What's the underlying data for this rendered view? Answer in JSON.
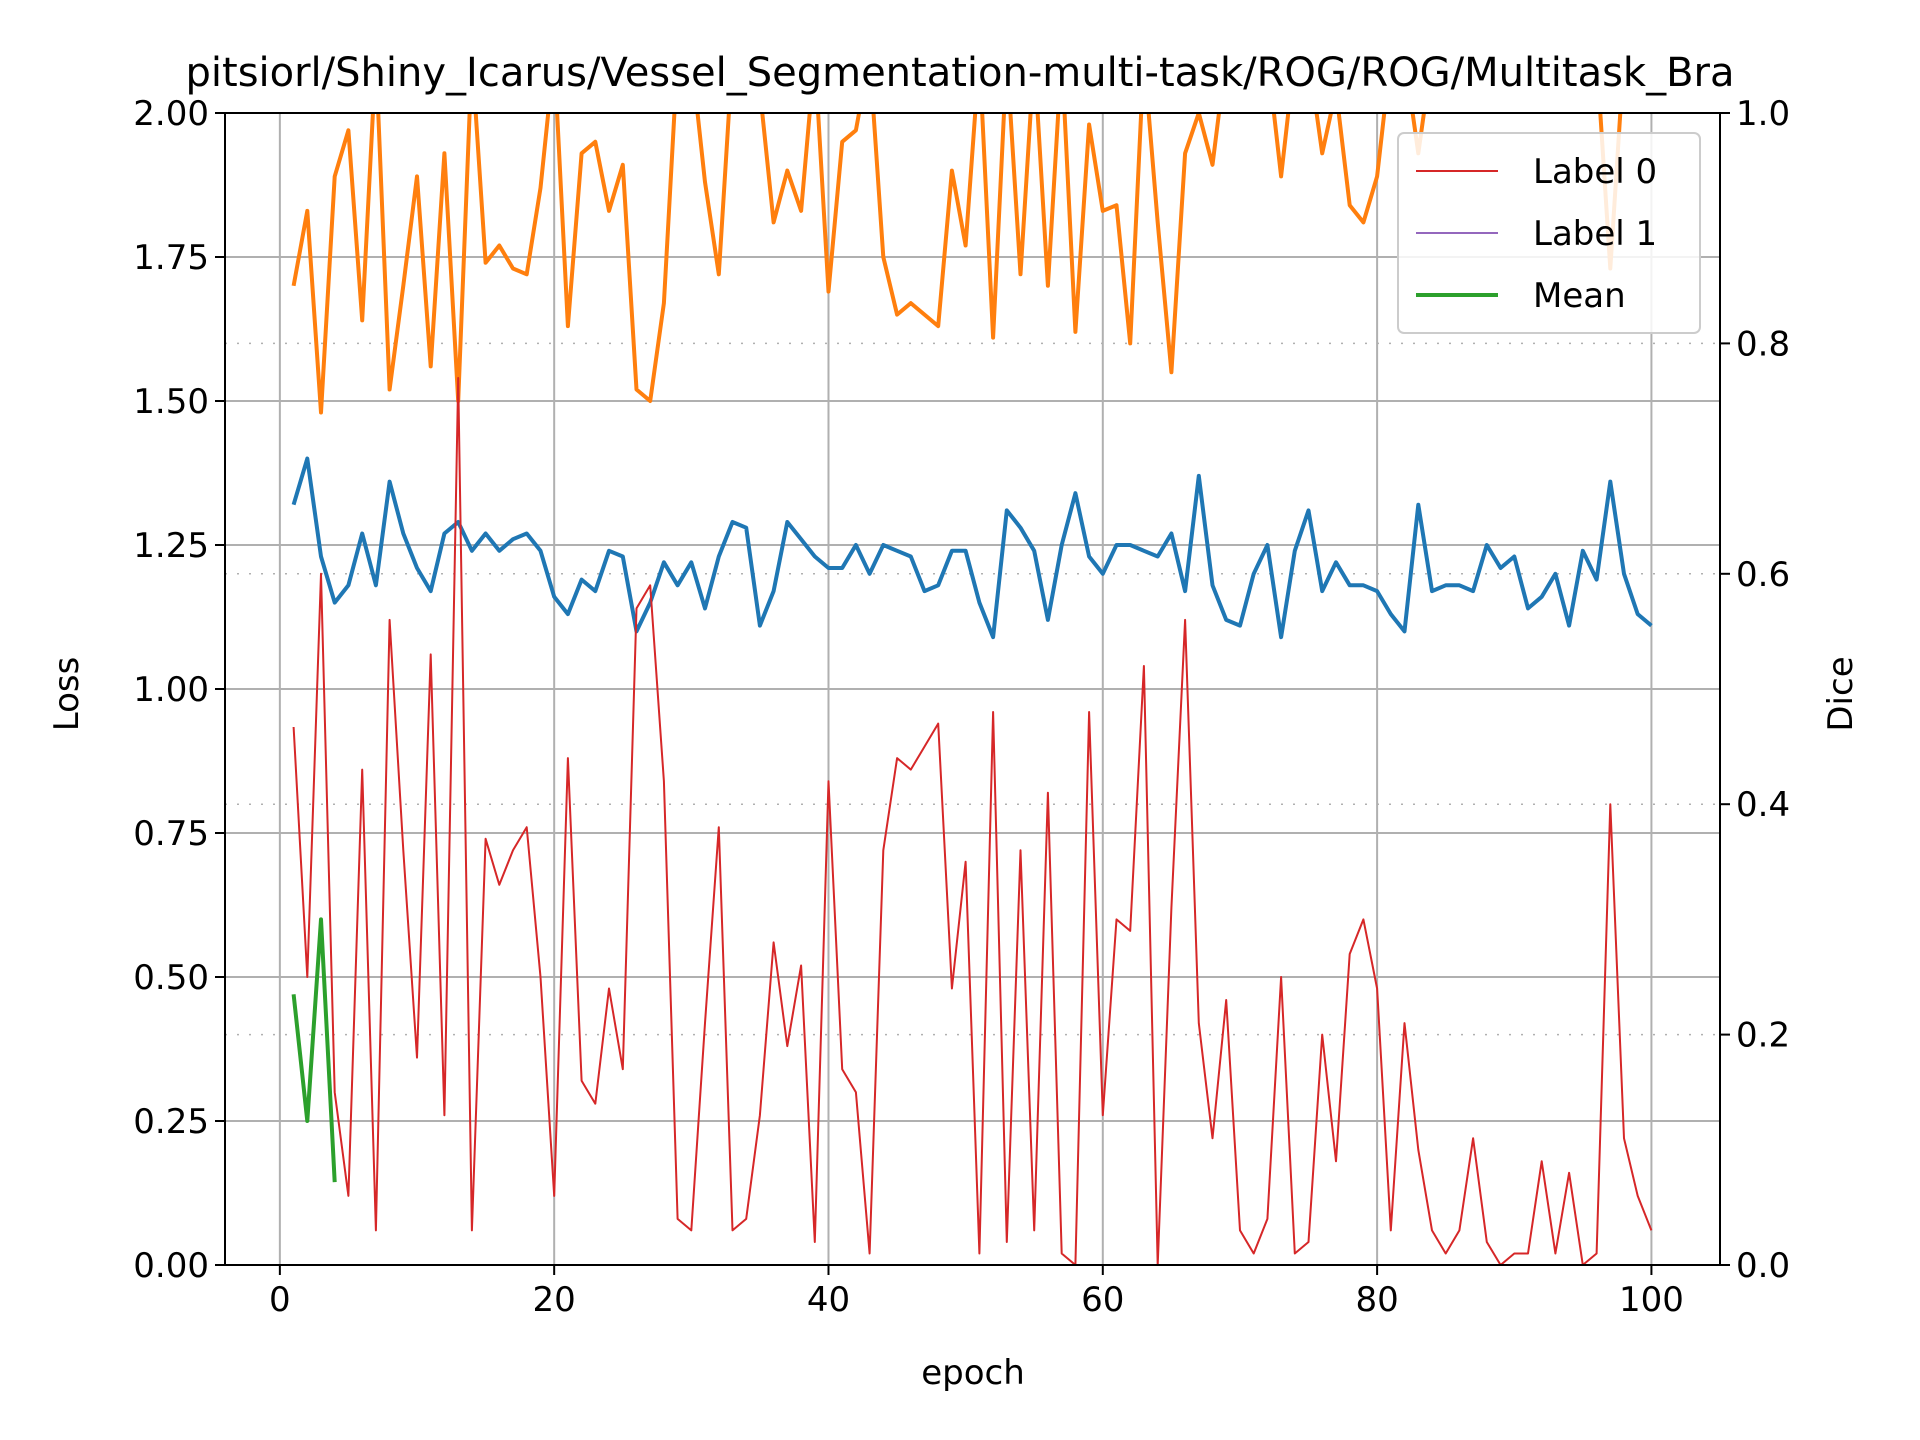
{
  "chart_data": {
    "type": "line",
    "title": "pitsiorl/Shiny_Icarus/Vessel_Segmentation-multi-task/ROG/ROG/Multitask_Bra",
    "xlabel": "epoch",
    "ylabel_left": "Loss",
    "ylabel_right": "Dice",
    "xlim": [
      -4,
      105
    ],
    "ylim_left": [
      0,
      2.0
    ],
    "ylim_right": [
      0,
      1.0
    ],
    "x_ticks": [
      "0",
      "20",
      "40",
      "60",
      "80",
      "100"
    ],
    "y_ticks_left": [
      "0.00",
      "0.25",
      "0.50",
      "0.75",
      "1.00",
      "1.25",
      "1.50",
      "1.75",
      "2.00"
    ],
    "y_ticks_right": [
      "0.0",
      "0.2",
      "0.4",
      "0.6",
      "0.8",
      "1.0"
    ],
    "grid": true,
    "legend_position": "top-right",
    "legend": [
      "Label 0",
      "Label 1",
      "Mean"
    ],
    "colors": {
      "train_loss": "#1f77b4",
      "val_loss": "#ff7f0e",
      "label0": "#d62728",
      "label1": "#9467bd",
      "mean": "#2ca02c",
      "grid": "#b0b0b0"
    },
    "series": [
      {
        "axis": "left",
        "color": "#1f77b4",
        "x": [
          1,
          2,
          3,
          4,
          5,
          6,
          7,
          8,
          9,
          10,
          11,
          12,
          13,
          14,
          15,
          16,
          17,
          18,
          19,
          20,
          21,
          22,
          23,
          24,
          25,
          26,
          27,
          28,
          29,
          30,
          31,
          32,
          33,
          34,
          35,
          36,
          37,
          38,
          39,
          40,
          41,
          42,
          43,
          44,
          45,
          46,
          47,
          48,
          49,
          50,
          51,
          52,
          53,
          54,
          55,
          56,
          57,
          58,
          59,
          60,
          61,
          62,
          63,
          64,
          65,
          66,
          67,
          68,
          69,
          70,
          71,
          72,
          73,
          74,
          75,
          76,
          77,
          78,
          79,
          80,
          81,
          82,
          83,
          84,
          85,
          86,
          87,
          88,
          89,
          90,
          91,
          92,
          93,
          94,
          95,
          96,
          97,
          98,
          99,
          100
        ],
        "values": [
          1.32,
          1.4,
          1.23,
          1.15,
          1.18,
          1.27,
          1.18,
          1.36,
          1.27,
          1.21,
          1.17,
          1.27,
          1.29,
          1.24,
          1.27,
          1.24,
          1.26,
          1.27,
          1.24,
          1.16,
          1.13,
          1.19,
          1.17,
          1.24,
          1.23,
          1.1,
          1.15,
          1.22,
          1.18,
          1.22,
          1.14,
          1.23,
          1.29,
          1.28,
          1.11,
          1.17,
          1.29,
          1.26,
          1.23,
          1.21,
          1.21,
          1.25,
          1.2,
          1.25,
          1.24,
          1.23,
          1.17,
          1.18,
          1.24,
          1.24,
          1.15,
          1.09,
          1.31,
          1.28,
          1.24,
          1.12,
          1.25,
          1.34,
          1.23,
          1.2,
          1.25,
          1.25,
          1.24,
          1.23,
          1.27,
          1.17,
          1.37,
          1.18,
          1.12,
          1.11,
          1.2,
          1.25,
          1.09,
          1.24,
          1.31,
          1.17,
          1.22,
          1.18,
          1.18,
          1.17,
          1.13,
          1.1,
          1.32,
          1.17,
          1.18,
          1.18,
          1.17,
          1.25,
          1.21,
          1.23,
          1.14,
          1.16,
          1.2,
          1.11,
          1.24,
          1.19,
          1.36,
          1.2,
          1.13,
          1.11
        ]
      },
      {
        "axis": "left",
        "color": "#ff7f0e",
        "x": [
          1,
          2,
          3,
          4,
          5,
          6,
          7,
          8,
          9,
          10,
          11,
          12,
          13,
          14,
          15,
          16,
          17,
          18,
          19,
          20,
          21,
          22,
          23,
          24,
          25,
          26,
          27,
          28,
          29,
          30,
          31,
          32,
          33,
          34,
          35,
          36,
          37,
          38,
          39,
          40,
          41,
          42,
          43,
          44,
          45,
          46,
          47,
          48,
          49,
          50,
          51,
          52,
          53,
          54,
          55,
          56,
          57,
          58,
          59,
          60,
          61,
          62,
          63,
          64,
          65,
          66,
          67,
          68,
          69,
          70,
          71,
          72,
          73,
          74,
          75,
          76,
          77,
          78,
          79,
          80,
          81,
          82,
          83,
          84,
          85,
          86,
          87,
          88,
          89,
          90,
          91,
          92,
          93,
          94,
          95,
          96,
          97,
          98,
          99,
          100
        ],
        "values": [
          1.7,
          1.83,
          1.48,
          1.89,
          1.97,
          1.64,
          2.1,
          1.52,
          1.7,
          1.89,
          1.56,
          1.93,
          1.5,
          2.1,
          1.74,
          1.77,
          1.73,
          1.72,
          1.87,
          2.1,
          1.63,
          1.93,
          1.95,
          1.83,
          1.91,
          1.52,
          1.5,
          1.67,
          2.1,
          2.1,
          1.88,
          1.72,
          2.1,
          2.1,
          2.04,
          1.81,
          1.9,
          1.83,
          2.1,
          1.69,
          1.95,
          1.97,
          2.1,
          1.75,
          1.65,
          1.67,
          1.65,
          1.63,
          1.9,
          1.77,
          2.1,
          1.61,
          2.1,
          1.72,
          2.1,
          1.7,
          2.1,
          1.62,
          1.98,
          1.83,
          1.84,
          1.6,
          2.1,
          1.81,
          1.55,
          1.93,
          2.0,
          1.91,
          2.1,
          2.1,
          2.1,
          2.1,
          1.89,
          2.1,
          2.1,
          1.93,
          2.04,
          1.84,
          1.81,
          1.89,
          2.1,
          2.1,
          1.93,
          2.1,
          2.1,
          2.1,
          2.1,
          2.1,
          2.1,
          2.1,
          2.1,
          2.1,
          2.1,
          2.1,
          2.1,
          2.1,
          1.73,
          2.1,
          2.1,
          2.1
        ]
      },
      {
        "name": "Label 0",
        "axis": "right",
        "color": "#d62728",
        "x": [
          1,
          2,
          3,
          4,
          5,
          6,
          7,
          8,
          9,
          10,
          11,
          12,
          13,
          14,
          15,
          16,
          17,
          18,
          19,
          20,
          21,
          22,
          23,
          24,
          25,
          26,
          27,
          28,
          29,
          30,
          31,
          32,
          33,
          34,
          35,
          36,
          37,
          38,
          39,
          40,
          41,
          42,
          43,
          44,
          45,
          46,
          47,
          48,
          49,
          50,
          51,
          52,
          53,
          54,
          55,
          56,
          57,
          58,
          59,
          60,
          61,
          62,
          63,
          64,
          65,
          66,
          67,
          68,
          69,
          70,
          71,
          72,
          73,
          74,
          75,
          76,
          77,
          78,
          79,
          80,
          81,
          82,
          83,
          84,
          85,
          86,
          87,
          88,
          89,
          90,
          91,
          92,
          93,
          94,
          95,
          96,
          97,
          98,
          99,
          100
        ],
        "values": [
          0.467,
          0.25,
          0.6,
          0.15,
          0.06,
          0.43,
          0.03,
          0.56,
          0.36,
          0.18,
          0.53,
          0.13,
          0.77,
          0.03,
          0.37,
          0.33,
          0.36,
          0.38,
          0.25,
          0.06,
          0.44,
          0.16,
          0.14,
          0.24,
          0.17,
          0.57,
          0.59,
          0.42,
          0.04,
          0.03,
          0.21,
          0.38,
          0.03,
          0.04,
          0.13,
          0.28,
          0.19,
          0.26,
          0.02,
          0.42,
          0.17,
          0.15,
          0.01,
          0.36,
          0.44,
          0.43,
          0.45,
          0.47,
          0.24,
          0.35,
          0.01,
          0.48,
          0.02,
          0.36,
          0.03,
          0.41,
          0.01,
          0.0,
          0.48,
          0.13,
          0.3,
          0.29,
          0.52,
          0.0,
          0.31,
          0.56,
          0.21,
          0.11,
          0.23,
          0.03,
          0.01,
          0.04,
          0.25,
          0.01,
          0.02,
          0.2,
          0.09,
          0.27,
          0.3,
          0.24,
          0.03,
          0.21,
          0.1,
          0.03,
          0.01,
          0.03,
          0.11,
          0.02,
          0.0,
          0.01,
          0.01,
          0.09,
          0.01,
          0.08,
          0.0,
          0.01,
          0.4,
          0.11,
          0.06,
          0.03
        ]
      },
      {
        "name": "Label 1",
        "axis": "right",
        "color": "#9467bd",
        "x": [],
        "values": []
      },
      {
        "name": "Mean",
        "axis": "right",
        "color": "#2ca02c",
        "x": [
          1,
          2,
          3,
          4
        ],
        "values": [
          0.235,
          0.125,
          0.3,
          0.072
        ]
      }
    ]
  }
}
